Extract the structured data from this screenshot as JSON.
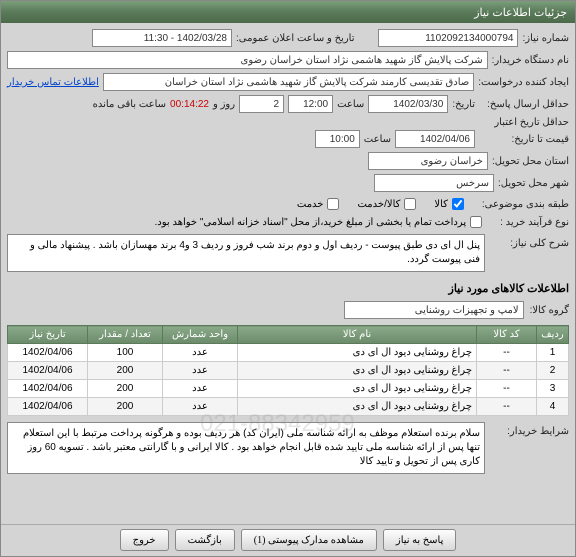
{
  "window": {
    "title": "جزئیات اطلاعات نیاز"
  },
  "fields": {
    "need_no_label": "شماره نیاز:",
    "need_no": "1102092134000794",
    "announce_label": "تاریخ و ساعت اعلان عمومی:",
    "announce_value": "1402/03/28 - 11:30",
    "buyer_label": "نام دستگاه خریدار:",
    "buyer_value": "شرکت پالایش گاز شهید هاشمی نژاد   استان خراسان رضوی",
    "creator_label": "ایجاد کننده درخواست:",
    "creator_value": "صادق تقدیسی  کارمند شرکت پالایش گاز شهید هاشمی نژاد   استان خراسان",
    "contact_link": "اطلاعات تماس خریدار",
    "deadline_label": "حداقل ارسال پاسخ:",
    "deadline_taarikh": "تاریخ:",
    "deadline_date": "1402/03/30",
    "saat_label": "ساعت",
    "deadline_time": "12:00",
    "day_and": "روز و",
    "days_left": "2",
    "remaining_time": "00:14:22",
    "remaining_text": "ساعت باقی مانده",
    "validity_label": "حداقل تاریخ اعتبار",
    "validity_sub": "قیمت تا تاریخ:",
    "validity_date": "1402/04/06",
    "validity_time": "10:00",
    "province_label": "استان محل تحویل:",
    "province_value": "خراسان رضوی",
    "city_label": "شهر محل تحویل:",
    "city_value": "سرخس"
  },
  "classification": {
    "label": "طبقه بندی موضوعی:",
    "opt_service": "خدمت",
    "opt_both": "کالا/خدمت",
    "opt_goods": "کالا",
    "checked": "goods"
  },
  "process": {
    "label": "نوع فرآیند خرید :",
    "text": "پرداخت تمام یا بخشی از مبلغ خرید،از محل \"اسناد خزانه اسلامی\" خواهد بود.",
    "checked": false
  },
  "summary": {
    "label": "شرح کلی نیاز:",
    "text": "پنل ال ای دی طبق پیوست -  ردیف اول و دوم برند شب فروز و ردیف 3 و4 برند مهسازان باشد . پیشنهاد مالی و فنی پیوست گردد."
  },
  "goods_section": "اطلاعلات کالاهای مورد نیاز",
  "group": {
    "label": "گروه کالا:",
    "value": "لامپ و تجهیزات روشنایی"
  },
  "table": {
    "headers": [
      "ردیف",
      "کد کالا",
      "نام کالا",
      "واحد شمارش",
      "تعداد / مقدار",
      "تاریخ نیاز"
    ],
    "rows": [
      [
        "1",
        "--",
        "چراغ روشنایی دیود ال ای دی",
        "عدد",
        "100",
        "1402/04/06"
      ],
      [
        "2",
        "--",
        "چراغ روشنایی دیود ال ای دی",
        "عدد",
        "200",
        "1402/04/06"
      ],
      [
        "3",
        "--",
        "چراغ روشنایی دیود ال ای دی",
        "عدد",
        "200",
        "1402/04/06"
      ],
      [
        "4",
        "--",
        "چراغ روشنایی دیود ال ای دی",
        "عدد",
        "200",
        "1402/04/06"
      ]
    ]
  },
  "buyer_note": {
    "label": "شرایط خریدار:",
    "text": "سلام  برنده استعلام موظف به ارائه شناسه ملی (ایران کد) هر ردیف بوده و هرگونه پرداخت مرتبط با این استعلام تنها پس از ارائه شناسه ملی تایید شده قابل انجام خواهد بود . کالا ایرانی و با گارانتی معتبر باشد . تسویه 60 روز کاری پس از تحویل و تایید کالا"
  },
  "watermark": "021-88342959",
  "buttons": {
    "respond": "پاسخ به نیاز",
    "attachments": "مشاهده مدارک پیوستی (1)",
    "back": "بازگشت",
    "exit": "خروج"
  },
  "colors": {
    "header_grad_top": "#7a9e7a",
    "header_grad_bot": "#4a6a4a",
    "th_grad_top": "#8aaa8a",
    "th_grad_bot": "#6a8a6a",
    "link": "#0044cc",
    "alert": "#cc0000",
    "bg": "#d4d4d4"
  }
}
